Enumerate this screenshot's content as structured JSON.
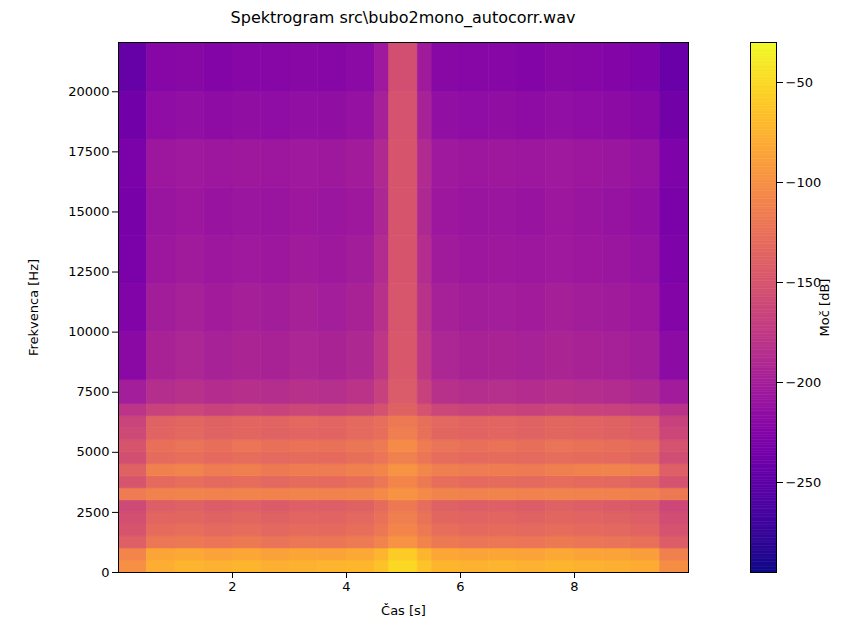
{
  "chart_data": {
    "type": "heatmap",
    "title": "Spektrogram src\\bubo2mono_autocorr.wav",
    "x_label": "Čas [s]",
    "y_label": "Frekvenca [Hz]",
    "xlim": [
      0,
      10
    ],
    "xticks": [
      2,
      4,
      6,
      8
    ],
    "ylim": [
      0,
      22050
    ],
    "yticks": [
      0,
      2500,
      5000,
      7500,
      10000,
      12500,
      15000,
      17500,
      20000
    ],
    "color": "plasma",
    "time_edges": [
      0,
      0.5,
      1,
      1.5,
      2,
      2.5,
      3,
      3.5,
      4,
      4.5,
      4.75,
      5.25,
      5.5,
      6,
      6.5,
      7,
      7.5,
      8,
      8.5,
      9,
      9.5,
      10
    ],
    "frequency_edges": [
      0,
      500,
      1000,
      1500,
      2000,
      2500,
      3000,
      3500,
      4000,
      4500,
      5000,
      5500,
      6000,
      6500,
      7000,
      8000,
      10000,
      12000,
      14000,
      16000,
      18000,
      20000,
      22050
    ],
    "values": [
      [
        -100,
        -78,
        -74,
        -76,
        -73,
        -77,
        -75,
        -74,
        -72,
        -65,
        -50,
        -64,
        -73,
        -75,
        -74,
        -76,
        -73,
        -75,
        -77,
        -80,
        -102
      ],
      [
        -108,
        -84,
        -82,
        -86,
        -83,
        -87,
        -84,
        -85,
        -82,
        -74,
        -58,
        -73,
        -83,
        -85,
        -84,
        -86,
        -82,
        -85,
        -86,
        -90,
        -112
      ],
      [
        -140,
        -120,
        -118,
        -122,
        -119,
        -123,
        -120,
        -121,
        -117,
        -110,
        -98,
        -109,
        -118,
        -121,
        -120,
        -122,
        -119,
        -121,
        -123,
        -126,
        -142
      ],
      [
        -150,
        -130,
        -128,
        -132,
        -129,
        -133,
        -130,
        -131,
        -127,
        -120,
        -108,
        -119,
        -128,
        -131,
        -130,
        -132,
        -129,
        -131,
        -133,
        -136,
        -152
      ],
      [
        -155,
        -135,
        -134,
        -137,
        -134,
        -138,
        -135,
        -136,
        -133,
        -125,
        -113,
        -124,
        -134,
        -136,
        -135,
        -137,
        -134,
        -136,
        -138,
        -141,
        -157
      ],
      [
        -160,
        -141,
        -139,
        -142,
        -140,
        -143,
        -140,
        -141,
        -138,
        -130,
        -118,
        -129,
        -139,
        -141,
        -140,
        -142,
        -139,
        -141,
        -143,
        -146,
        -162
      ],
      [
        -116,
        -111,
        -110,
        -111,
        -110,
        -111,
        -110,
        -111,
        -110,
        -105,
        -98,
        -105,
        -110,
        -111,
        -110,
        -111,
        -110,
        -111,
        -111,
        -112,
        -118
      ],
      [
        -150,
        -131,
        -128,
        -132,
        -129,
        -133,
        -130,
        -131,
        -127,
        -120,
        -108,
        -119,
        -128,
        -131,
        -130,
        -132,
        -129,
        -131,
        -133,
        -136,
        -152
      ],
      [
        -138,
        -112,
        -110,
        -116,
        -113,
        -118,
        -115,
        -116,
        -112,
        -108,
        -98,
        -107,
        -113,
        -116,
        -115,
        -117,
        -113,
        -111,
        -110,
        -113,
        -140
      ],
      [
        -155,
        -130,
        -128,
        -131,
        -129,
        -132,
        -130,
        -131,
        -127,
        -122,
        -112,
        -121,
        -129,
        -131,
        -130,
        -132,
        -129,
        -130,
        -131,
        -134,
        -157
      ],
      [
        -150,
        -126,
        -123,
        -127,
        -122,
        -126,
        -124,
        -125,
        -121,
        -117,
        -104,
        -116,
        -123,
        -126,
        -124,
        -127,
        -123,
        -125,
        -127,
        -130,
        -152
      ],
      [
        -160,
        -136,
        -133,
        -137,
        -134,
        -137,
        -135,
        -136,
        -132,
        -127,
        -114,
        -126,
        -134,
        -136,
        -135,
        -137,
        -134,
        -136,
        -138,
        -141,
        -162
      ],
      [
        -165,
        -137,
        -134,
        -138,
        -135,
        -136,
        -133,
        -135,
        -132,
        -128,
        -118,
        -127,
        -133,
        -136,
        -135,
        -137,
        -134,
        -136,
        -138,
        -142,
        -167
      ],
      [
        -180,
        -166,
        -163,
        -167,
        -164,
        -166,
        -163,
        -165,
        -161,
        -153,
        -138,
        -152,
        -163,
        -166,
        -165,
        -167,
        -164,
        -166,
        -168,
        -171,
        -182
      ],
      [
        -200,
        -186,
        -183,
        -187,
        -184,
        -186,
        -183,
        -185,
        -181,
        -168,
        -144,
        -167,
        -183,
        -186,
        -185,
        -187,
        -184,
        -186,
        -188,
        -191,
        -202
      ],
      [
        -220,
        -196,
        -193,
        -197,
        -194,
        -196,
        -193,
        -195,
        -191,
        -178,
        -147,
        -177,
        -193,
        -196,
        -195,
        -197,
        -194,
        -196,
        -198,
        -201,
        -218
      ],
      [
        -227,
        -201,
        -198,
        -202,
        -199,
        -201,
        -198,
        -200,
        -196,
        -183,
        -149,
        -182,
        -198,
        -201,
        -200,
        -202,
        -199,
        -201,
        -203,
        -206,
        -224
      ],
      [
        -230,
        -206,
        -203,
        -207,
        -204,
        -206,
        -203,
        -205,
        -201,
        -188,
        -150,
        -187,
        -203,
        -206,
        -205,
        -207,
        -204,
        -206,
        -208,
        -211,
        -228
      ],
      [
        -232,
        -209,
        -207,
        -210,
        -208,
        -209,
        -207,
        -208,
        -205,
        -192,
        -150,
        -191,
        -207,
        -209,
        -208,
        -210,
        -207,
        -209,
        -211,
        -214,
        -230
      ],
      [
        -230,
        -206,
        -204,
        -207,
        -205,
        -206,
        -204,
        -205,
        -202,
        -190,
        -150,
        -189,
        -204,
        -206,
        -205,
        -207,
        -204,
        -206,
        -208,
        -211,
        -228
      ],
      [
        -238,
        -216,
        -214,
        -217,
        -215,
        -216,
        -214,
        -215,
        -212,
        -198,
        -152,
        -197,
        -214,
        -216,
        -215,
        -217,
        -214,
        -216,
        -218,
        -221,
        -236
      ],
      [
        -245,
        -223,
        -221,
        -224,
        -222,
        -223,
        -221,
        -222,
        -219,
        -204,
        -155,
        -203,
        -221,
        -223,
        -222,
        -224,
        -221,
        -223,
        -225,
        -228,
        -243
      ]
    ],
    "colorbar": {
      "label": "Moč [dB]",
      "range": [
        -295,
        -30
      ],
      "ticks": [
        -250,
        -200,
        -150,
        -100,
        -50
      ]
    }
  }
}
